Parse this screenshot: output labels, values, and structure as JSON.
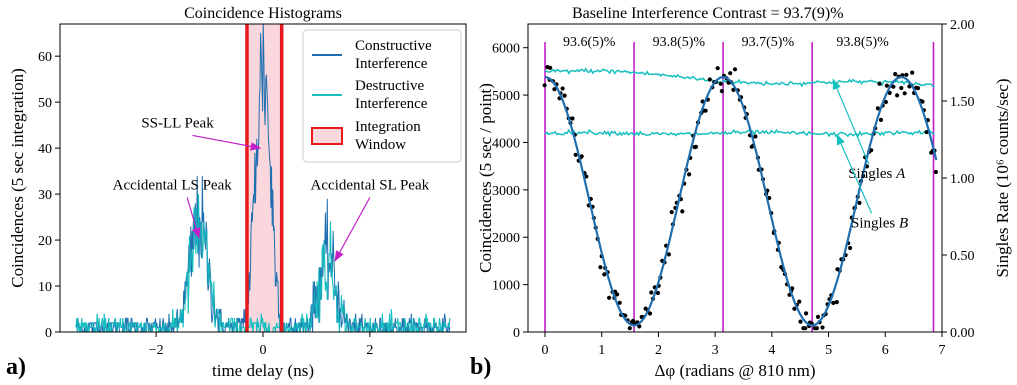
{
  "chart_data": [
    {
      "panel_label": "a)",
      "type": "line",
      "title": "Coincidence Histograms",
      "xlabel": "time delay (ns)",
      "ylabel": "Coincidences (5 sec integration)",
      "xlim": [
        -3.8,
        3.8
      ],
      "ylim": [
        0,
        67
      ],
      "xticks": [
        -2,
        0,
        2
      ],
      "yticks": [
        0,
        10,
        20,
        30,
        40,
        50,
        60
      ],
      "grid": false,
      "legend_position": "top-right",
      "series": [
        {
          "name": "Constructive Interference",
          "color": "#1f6fb0",
          "peaks": [
            {
              "x": -1.2,
              "y": 24,
              "width": 0.16
            },
            {
              "x": 0.0,
              "y": 58,
              "width": 0.14
            },
            {
              "x": 1.2,
              "y": 16,
              "width": 0.16
            }
          ],
          "baseline": 1,
          "x_range": [
            -3.5,
            3.5
          ]
        },
        {
          "name": "Destructive Interference",
          "color": "#17bfbf",
          "peaks": [
            {
              "x": -1.2,
              "y": 22,
              "width": 0.16
            },
            {
              "x": 0.0,
              "y": 1,
              "width": 0.14
            },
            {
              "x": 1.2,
              "y": 15,
              "width": 0.16
            }
          ],
          "baseline": 1,
          "x_range": [
            -3.5,
            3.5
          ]
        }
      ],
      "integration_window": {
        "name": "Integration Window",
        "x": [
          -0.3,
          0.35
        ],
        "edge_color": "#e8191c",
        "fill_color": "#f9d7dc"
      },
      "annotations": [
        {
          "text": "SS-LL Peak",
          "text_at": [
            -1.6,
            44.5
          ],
          "arrow_to": [
            -0.05,
            40
          ]
        },
        {
          "text": "Accidental LS Peak",
          "text_at": [
            -1.7,
            31
          ],
          "arrow_to": [
            -1.2,
            20.5
          ]
        },
        {
          "text": "Accidental SL Peak",
          "text_at": [
            2.0,
            31
          ],
          "arrow_to": [
            1.35,
            15.5
          ]
        }
      ]
    },
    {
      "panel_label": "b)",
      "type": "scatter",
      "title": "Baseline Interference Contrast  = 93.7(9)%",
      "xlabel": "Δφ (radians @ 810 nm)",
      "ylabel": "Coincidences (5 sec / point)",
      "ylabel_right": "Singles Rate (10⁶ counts/sec)",
      "xlim": [
        -0.3,
        7.0
      ],
      "ylim": [
        0,
        6500
      ],
      "ylim_right": [
        0,
        2.0
      ],
      "xticks": [
        0,
        1,
        2,
        3,
        4,
        5,
        6,
        7
      ],
      "yticks": [
        0,
        1000,
        2000,
        3000,
        4000,
        5000,
        6000
      ],
      "yticks_right": [
        "0.00",
        "0.50",
        "1.00",
        "1.50",
        "2.00"
      ],
      "grid": false,
      "coincidence_fit": {
        "color": "#1f6fb0",
        "amplitude": 2620,
        "offset": 2760,
        "phase_shift": 0.0,
        "x_range": [
          0.0,
          6.9
        ]
      },
      "coincidence_points": {
        "color": "#000000",
        "count": 200,
        "x_range": [
          0.0,
          6.9
        ],
        "noise": 170
      },
      "singles": [
        {
          "name": "Singles A",
          "color": "#17bfbf",
          "y_start": 1.69,
          "y_end": 1.59
        },
        {
          "name": "Singles B",
          "color": "#17bfbf",
          "y_start": 1.29,
          "y_end": 1.29
        }
      ],
      "phase_markers": {
        "color": "#c21fc9",
        "x": [
          0.0,
          1.57,
          3.14,
          4.71,
          6.85
        ]
      },
      "contrast_labels": [
        {
          "text": "93.6(5)%",
          "x": 0.78
        },
        {
          "text": "93.8(5)%",
          "x": 2.36
        },
        {
          "text": "93.7(5)%",
          "x": 3.93
        },
        {
          "text": "93.8(5)%",
          "x": 5.6
        }
      ],
      "annotations": [
        {
          "text": "Singles A",
          "text_at": [
            5.85,
            1.0
          ],
          "arrow_to": [
            5.08,
            1.64
          ]
        },
        {
          "text": "Singles B",
          "text_at": [
            5.9,
            0.68
          ],
          "arrow_to": [
            5.15,
            1.28
          ]
        }
      ]
    }
  ]
}
